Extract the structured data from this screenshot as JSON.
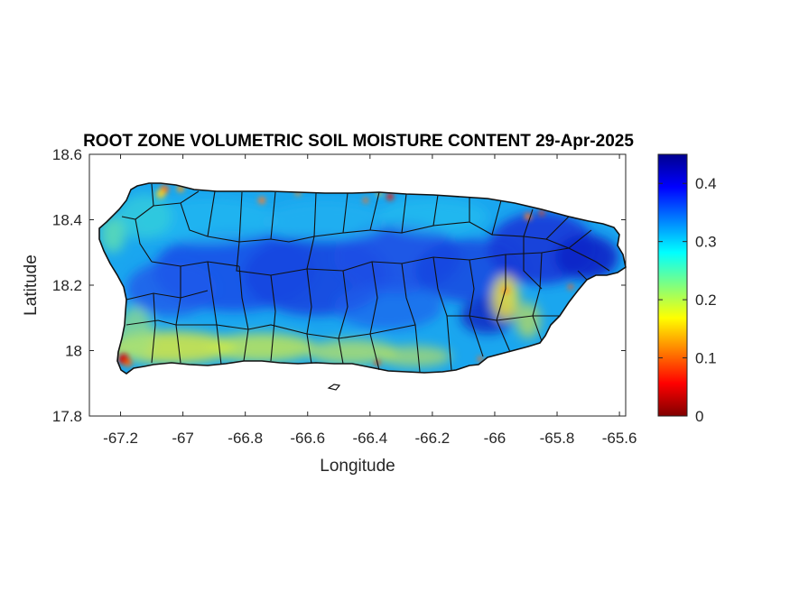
{
  "map": {
    "title": "ROOT ZONE VOLUMETRIC SOIL MOISTURE CONTENT 29-Apr-2025",
    "xlabel": "Longitude",
    "ylabel": "Latitude",
    "xlim": [
      -67.3,
      -65.58
    ],
    "ylim": [
      17.8,
      18.6
    ],
    "xticks": [
      {
        "value": -67.2,
        "label": "-67.2"
      },
      {
        "value": -67.0,
        "label": "-67"
      },
      {
        "value": -66.8,
        "label": "-66.8"
      },
      {
        "value": -66.6,
        "label": "-66.6"
      },
      {
        "value": -66.4,
        "label": "-66.4"
      },
      {
        "value": -66.2,
        "label": "-66.2"
      },
      {
        "value": -66.0,
        "label": "-66"
      },
      {
        "value": -65.8,
        "label": "-65.8"
      },
      {
        "value": -65.6,
        "label": "-65.6"
      }
    ],
    "yticks": [
      {
        "value": 17.8,
        "label": "17.8"
      },
      {
        "value": 18.0,
        "label": "18"
      },
      {
        "value": 18.2,
        "label": "18.2"
      },
      {
        "value": 18.4,
        "label": "18.4"
      },
      {
        "value": 18.6,
        "label": "18.6"
      }
    ],
    "colorbar": {
      "range": [
        0,
        0.45
      ],
      "colormap": "jet",
      "ticks": [
        {
          "value": 0,
          "label": "0"
        },
        {
          "value": 0.1,
          "label": "0.1"
        },
        {
          "value": 0.2,
          "label": "0.2"
        },
        {
          "value": 0.3,
          "label": "0.3"
        },
        {
          "value": 0.4,
          "label": "0.4"
        }
      ]
    },
    "colors": {
      "wet_core": "#1e4fe6",
      "moist": "#1fa0f0",
      "dry_coast": "#f0e030",
      "very_dry": "#d81818",
      "boundary": "#111111"
    }
  }
}
